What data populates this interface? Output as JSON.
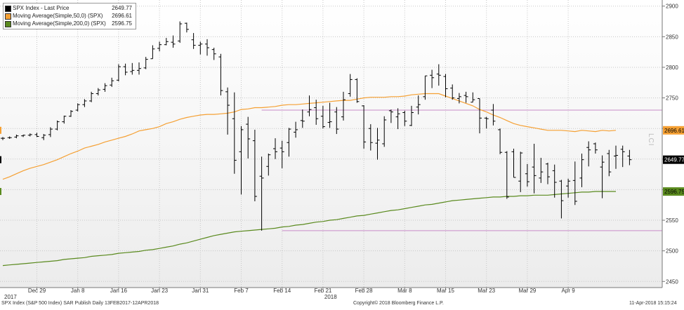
{
  "chart_data": {
    "type": "ohlc-bar",
    "ylim": [
      2440,
      2910
    ],
    "yticks": [
      2450,
      2500,
      2550,
      2600,
      2650,
      2700,
      2750,
      2800,
      2850,
      2900
    ],
    "xlabels": [
      {
        "label": "Dec 29",
        "i": 5
      },
      {
        "label": "Jan 8",
        "i": 11
      },
      {
        "label": "Jan 16",
        "i": 17
      },
      {
        "label": "Jan 23",
        "i": 23
      },
      {
        "label": "Jan 31",
        "i": 29
      },
      {
        "label": "Feb 7",
        "i": 35
      },
      {
        "label": "Feb 14",
        "i": 41
      },
      {
        "label": "Feb 21",
        "i": 47
      },
      {
        "label": "Feb 28",
        "i": 53
      },
      {
        "label": "Mar 8",
        "i": 59
      },
      {
        "label": "Mar 15",
        "i": 65
      },
      {
        "label": "Mar 23",
        "i": 71
      },
      {
        "label": "Mar 29",
        "i": 77
      },
      {
        "label": "Apr 9",
        "i": 83
      }
    ],
    "year_labels": [
      {
        "label": "2017",
        "i": 0
      },
      {
        "label": "2018",
        "i": 47
      }
    ],
    "series": [
      {
        "name": "SPX Index - Last Price",
        "color": "#000000",
        "value_label": "2649.77",
        "bars": [
          [
            2684,
            2686,
            2681,
            2684
          ],
          [
            2685,
            2687,
            2683,
            2685
          ],
          [
            2686,
            2690,
            2684,
            2688
          ],
          [
            2688,
            2690,
            2686,
            2689
          ],
          [
            2689,
            2692,
            2687,
            2690
          ],
          [
            2690,
            2693,
            2686,
            2687
          ],
          [
            2685,
            2691,
            2681,
            2689
          ],
          [
            2690,
            2702,
            2686,
            2699
          ],
          [
            2699,
            2713,
            2697,
            2711
          ],
          [
            2711,
            2721,
            2708,
            2720
          ],
          [
            2720,
            2730,
            2719,
            2728
          ],
          [
            2730,
            2741,
            2728,
            2739
          ],
          [
            2739,
            2748,
            2735,
            2745
          ],
          [
            2745,
            2760,
            2743,
            2757
          ],
          [
            2757,
            2766,
            2754,
            2763
          ],
          [
            2764,
            2774,
            2760,
            2770
          ],
          [
            2771,
            2783,
            2768,
            2778
          ],
          [
            2779,
            2805,
            2777,
            2801
          ],
          [
            2801,
            2806,
            2787,
            2792
          ],
          [
            2793,
            2807,
            2788,
            2795
          ],
          [
            2795,
            2808,
            2788,
            2798
          ],
          [
            2799,
            2817,
            2797,
            2813
          ],
          [
            2814,
            2836,
            2814,
            2830
          ],
          [
            2831,
            2842,
            2826,
            2837
          ],
          [
            2837,
            2848,
            2836,
            2842
          ],
          [
            2841,
            2852,
            2832,
            2838
          ],
          [
            2843,
            2875,
            2840,
            2871
          ],
          [
            2872,
            2873,
            2857,
            2862
          ],
          [
            2845,
            2856,
            2830,
            2836
          ],
          [
            2836,
            2842,
            2821,
            2838
          ],
          [
            2838,
            2846,
            2819,
            2832
          ],
          [
            2829,
            2832,
            2812,
            2822
          ],
          [
            2817,
            2822,
            2754,
            2762
          ],
          [
            2760,
            2767,
            2690,
            2738
          ],
          [
            2716,
            2759,
            2626,
            2648
          ],
          [
            2662,
            2704,
            2592,
            2698
          ],
          [
            2707,
            2719,
            2651,
            2683
          ],
          [
            2680,
            2698,
            2581,
            2589
          ],
          [
            2622,
            2654,
            2533,
            2619
          ],
          [
            2638,
            2659,
            2623,
            2657
          ],
          [
            2667,
            2684,
            2650,
            2662
          ],
          [
            2668,
            2680,
            2635,
            2662
          ],
          [
            2677,
            2701,
            2654,
            2699
          ],
          [
            2694,
            2711,
            2685,
            2698
          ],
          [
            2713,
            2731,
            2701,
            2712
          ],
          [
            2727,
            2754,
            2720,
            2731
          ],
          [
            2734,
            2747,
            2706,
            2716
          ],
          [
            2720,
            2737,
            2700,
            2703
          ],
          [
            2710,
            2742,
            2701,
            2711
          ],
          [
            2727,
            2735,
            2691,
            2699
          ],
          [
            2719,
            2760,
            2713,
            2747
          ],
          [
            2757,
            2789,
            2752,
            2780
          ],
          [
            2780,
            2782,
            2742,
            2744
          ],
          [
            2737,
            2738,
            2667,
            2678
          ],
          [
            2700,
            2707,
            2664,
            2677
          ],
          [
            2676,
            2701,
            2649,
            2681
          ],
          [
            2675,
            2720,
            2670,
            2714
          ],
          [
            2729,
            2731,
            2709,
            2727
          ],
          [
            2719,
            2733,
            2699,
            2724
          ],
          [
            2726,
            2729,
            2704,
            2712
          ],
          [
            2705,
            2737,
            2704,
            2726
          ],
          [
            2735,
            2754,
            2723,
            2739
          ],
          [
            2752,
            2785,
            2747,
            2786
          ],
          [
            2787,
            2796,
            2766,
            2783
          ],
          [
            2789,
            2805,
            2770,
            2787
          ],
          [
            2785,
            2789,
            2751,
            2765
          ],
          [
            2766,
            2772,
            2747,
            2750
          ],
          [
            2749,
            2758,
            2741,
            2752
          ],
          [
            2754,
            2760,
            2742,
            2752
          ],
          [
            2743,
            2759,
            2743,
            2747
          ],
          [
            2749,
            2742,
            2692,
            2717
          ],
          [
            2717,
            2719,
            2700,
            2716
          ],
          [
            2730,
            2740,
            2705,
            2712
          ],
          [
            2698,
            2700,
            2658,
            2661
          ],
          [
            2661,
            2663,
            2585,
            2588
          ],
          [
            2662,
            2667,
            2621,
            2620
          ],
          [
            2614,
            2662,
            2596,
            2660
          ],
          [
            2626,
            2642,
            2605,
            2613
          ],
          [
            2637,
            2675,
            2594,
            2623
          ],
          [
            2619,
            2652,
            2611,
            2629
          ],
          [
            2642,
            2644,
            2609,
            2621
          ],
          [
            2631,
            2641,
            2587,
            2612
          ],
          [
            2614,
            2616,
            2553,
            2582
          ],
          [
            2606,
            2618,
            2587,
            2614
          ],
          [
            2615,
            2646,
            2575,
            2581
          ],
          [
            2619,
            2659,
            2604,
            2649
          ],
          [
            2669,
            2679,
            2638,
            2665
          ],
          [
            2675,
            2677,
            2659,
            2665
          ],
          [
            2637,
            2656,
            2586,
            2645
          ],
          [
            2659,
            2665,
            2622,
            2629
          ],
          [
            2655,
            2672,
            2634,
            2656
          ],
          [
            2666,
            2672,
            2637,
            2662
          ],
          [
            2655,
            2665,
            2640,
            2649
          ]
        ]
      },
      {
        "name": "Moving Average(Simple,50,0)  (SPX)",
        "color": "#f5a033",
        "value_label": "2696.61",
        "values": [
          2617,
          2621,
          2626,
          2631,
          2635,
          2638,
          2641,
          2645,
          2649,
          2654,
          2659,
          2663,
          2668,
          2671,
          2674,
          2678,
          2681,
          2684,
          2687,
          2691,
          2696,
          2698,
          2700,
          2703,
          2708,
          2711,
          2715,
          2718,
          2720,
          2722,
          2723,
          2723,
          2724,
          2725,
          2727,
          2731,
          2732,
          2734,
          2734,
          2735,
          2736,
          2738,
          2739,
          2739,
          2740,
          2741,
          2742,
          2743,
          2744,
          2745,
          2746,
          2746,
          2748,
          2750,
          2751,
          2751,
          2751,
          2752,
          2752,
          2753,
          2755,
          2756,
          2757,
          2757,
          2757,
          2753,
          2749,
          2745,
          2741,
          2737,
          2731,
          2727,
          2722,
          2718,
          2713,
          2708,
          2705,
          2703,
          2701,
          2699,
          2697,
          2697,
          2697,
          2696,
          2695,
          2697,
          2696,
          2695,
          2697,
          2696,
          2697
        ]
      },
      {
        "name": "Moving Average(Simple,200,0)  (SPX)",
        "color": "#5a8a1e",
        "value_label": "2596.75",
        "values": [
          2476,
          2477,
          2478,
          2479,
          2480,
          2481,
          2482,
          2483,
          2484,
          2486,
          2487,
          2488,
          2489,
          2491,
          2492,
          2493,
          2494,
          2496,
          2497,
          2498,
          2499,
          2501,
          2502,
          2504,
          2506,
          2508,
          2511,
          2513,
          2516,
          2519,
          2522,
          2525,
          2527,
          2529,
          2531,
          2532,
          2533,
          2534,
          2535,
          2536,
          2537,
          2539,
          2540,
          2542,
          2543,
          2545,
          2547,
          2548,
          2550,
          2551,
          2553,
          2555,
          2557,
          2558,
          2560,
          2562,
          2564,
          2566,
          2567,
          2569,
          2571,
          2573,
          2575,
          2576,
          2578,
          2580,
          2582,
          2583,
          2584,
          2585,
          2586,
          2587,
          2588,
          2588,
          2589,
          2589,
          2590,
          2590,
          2591,
          2591,
          2591,
          2592,
          2593,
          2594,
          2595,
          2596,
          2596,
          2597,
          2597,
          2597,
          2597
        ]
      }
    ],
    "reference_lines": [
      {
        "value": 2730,
        "color": "#c98dc9"
      },
      {
        "value": 2533,
        "color": "#c98dc9"
      }
    ]
  },
  "legend": {
    "items": [
      {
        "label": "SPX Index - Last Price",
        "value": "2649.77",
        "color": "#000000"
      },
      {
        "label": "Moving Average(Simple,50,0)  (SPX)",
        "value": "2696.61",
        "color": "#f5a033"
      },
      {
        "label": "Moving Average(Simple,200,0)  (SPX)",
        "value": "2596.75",
        "color": "#5a8a1e"
      }
    ]
  },
  "footer": {
    "left": "SPX Index (S&P 500 Index)  SAR Publish  Daily 13FEB2017-12APR2018",
    "center": "Copyright© 2018 Bloomberg Finance L.P.",
    "right": "11-Apr-2018 15:15:24"
  },
  "side_logo": "LCI"
}
